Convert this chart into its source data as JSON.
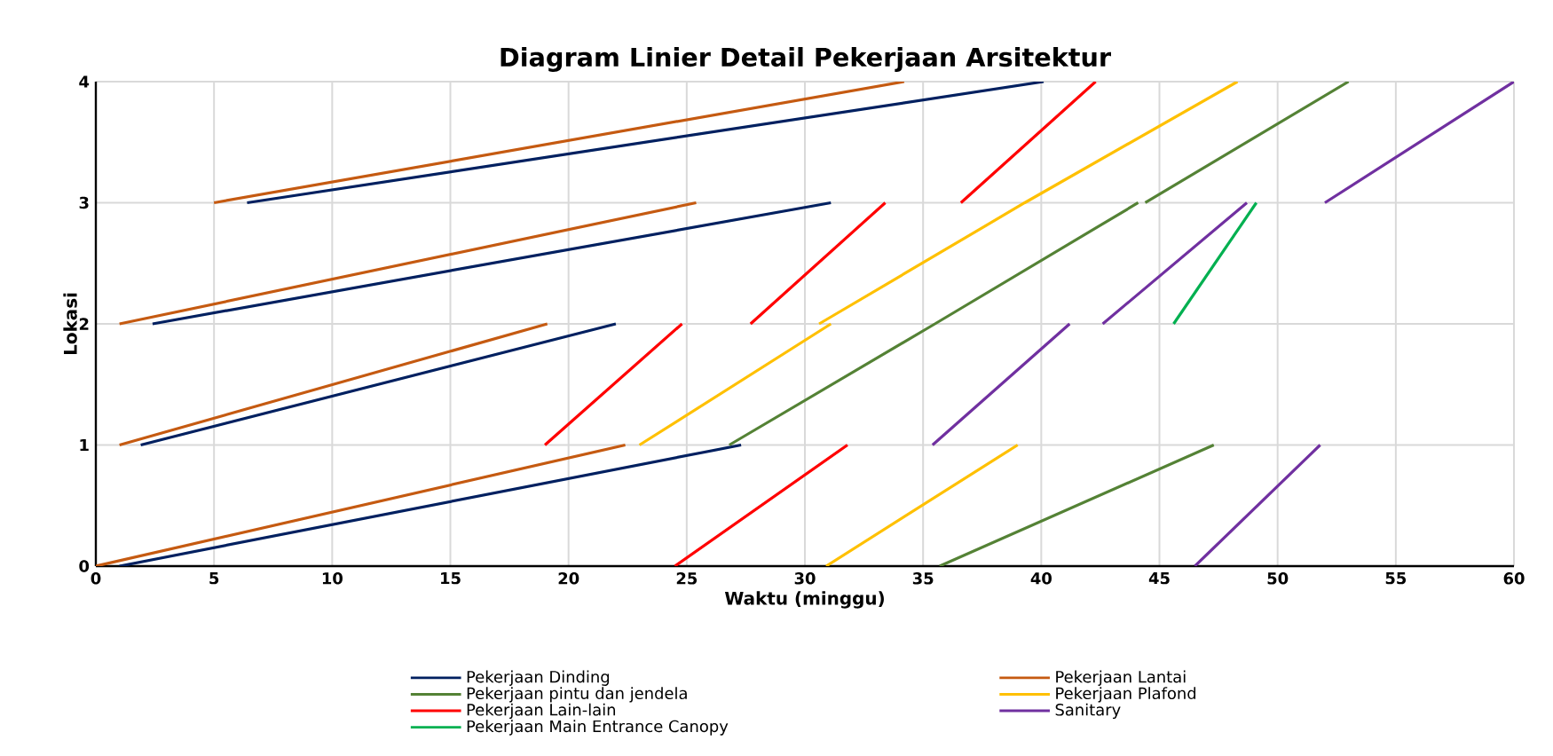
{
  "chart_data": {
    "type": "line",
    "title": "Diagram Linier Detail Pekerjaan Arsitektur",
    "xlabel": "Waktu (minggu)",
    "ylabel": "Lokasi",
    "xlim": [
      0,
      60
    ],
    "ylim": [
      0,
      4
    ],
    "xticks": [
      0,
      5,
      10,
      15,
      20,
      25,
      30,
      35,
      40,
      45,
      50,
      55,
      60
    ],
    "yticks": [
      0,
      1,
      2,
      3,
      4
    ],
    "grid": true,
    "legend": "bottom",
    "marker": "none",
    "line_style": "solid",
    "series": [
      {
        "name": "Pekerjaan Dinding",
        "color": "#002060",
        "x": [
          1.0,
          27.3,
          null,
          1.9,
          22.0,
          null,
          2.4,
          31.1,
          null,
          6.4,
          40.1
        ],
        "values": [
          0,
          1,
          null,
          1,
          2,
          null,
          2,
          3,
          null,
          3,
          4
        ]
      },
      {
        "name": "Pekerjaan Lantai",
        "color": "#c55a11",
        "x": [
          0,
          22.4,
          null,
          1.0,
          19.1,
          null,
          1.0,
          25.4,
          null,
          5.0,
          34.2
        ],
        "values": [
          0,
          1,
          null,
          1,
          2,
          null,
          2,
          3,
          null,
          3,
          4
        ]
      },
      {
        "name": "Pekerjaan pintu dan jendela",
        "color": "#548235",
        "x": [
          35.7,
          47.3,
          null,
          26.8,
          35.5,
          null,
          35.5,
          44.1,
          null,
          44.4,
          53.0
        ],
        "values": [
          0,
          1,
          null,
          1,
          2,
          null,
          2,
          3,
          null,
          3,
          4
        ]
      },
      {
        "name": "Pekerjaan Plafond",
        "color": "#ffc000",
        "x": [
          30.9,
          39.0,
          null,
          23.0,
          31.1,
          null,
          30.6,
          39.3,
          null,
          39.3,
          48.3
        ],
        "values": [
          0,
          1,
          null,
          1,
          2,
          null,
          2,
          3,
          null,
          3,
          4
        ]
      },
      {
        "name": "Pekerjaan Lain-lain",
        "color": "#ff0000",
        "x": [
          24.5,
          31.8,
          null,
          19.0,
          24.8,
          null,
          27.7,
          33.4,
          null,
          36.6,
          42.3
        ],
        "values": [
          0,
          1,
          null,
          1,
          2,
          null,
          2,
          3,
          null,
          3,
          4
        ]
      },
      {
        "name": "Sanitary",
        "color": "#7030a0",
        "x": [
          46.5,
          51.8,
          null,
          35.4,
          41.2,
          null,
          42.6,
          48.7,
          null,
          52.0,
          60
        ],
        "values": [
          0,
          1,
          null,
          1,
          2,
          null,
          2,
          3,
          null,
          3,
          4
        ]
      },
      {
        "name": "Pekerjaan Main Entrance Canopy",
        "color": "#00b050",
        "x": [
          45.6,
          49.1
        ],
        "values": [
          2,
          3
        ]
      }
    ]
  }
}
